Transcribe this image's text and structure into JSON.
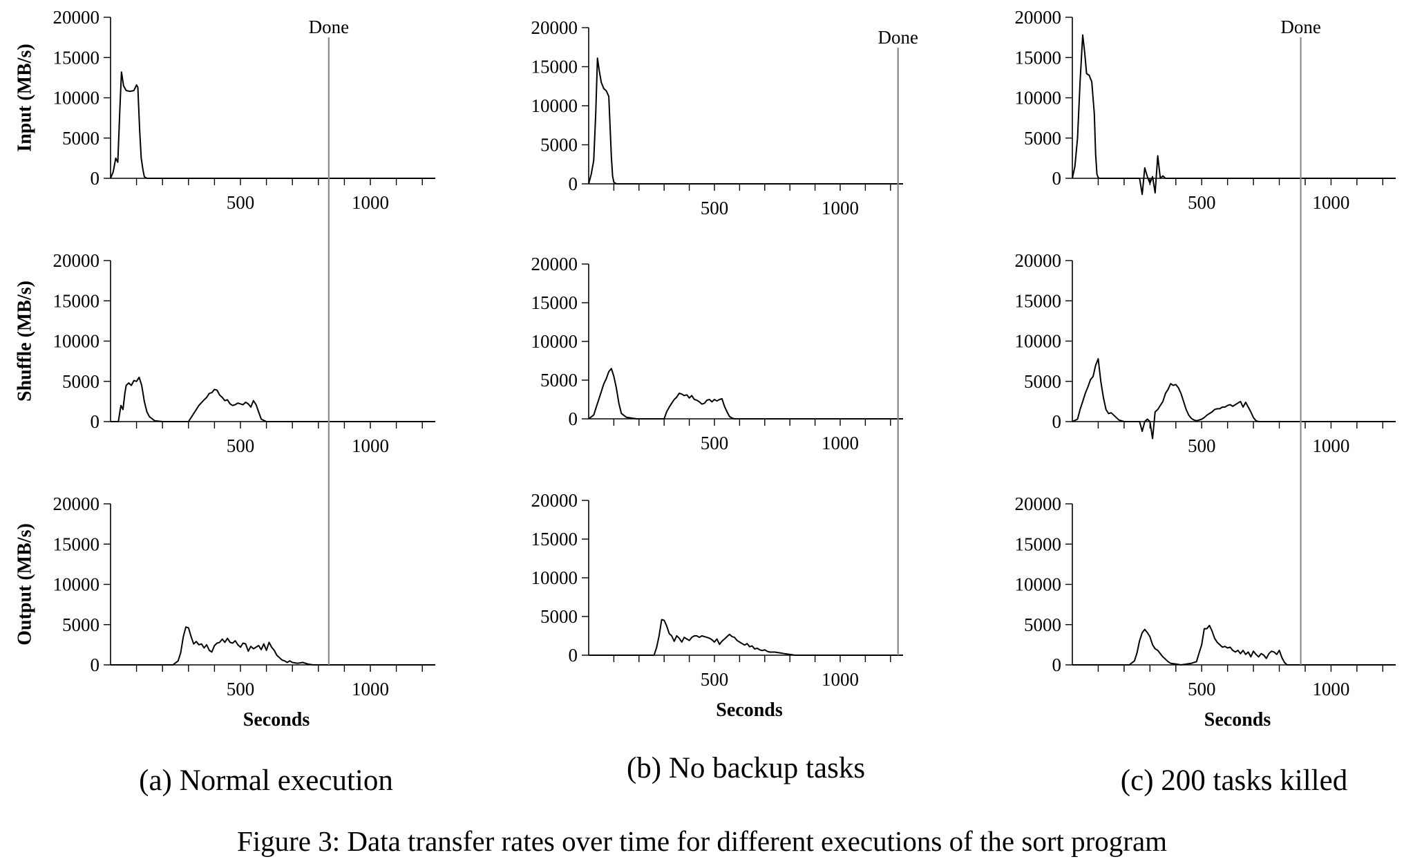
{
  "figure_caption": "Figure 3: Data transfer rates over time for different executions of the sort program",
  "done_label": "Done",
  "chart_data": [
    {
      "caption": "(a) Normal execution",
      "type": "line",
      "xlabel": "Seconds",
      "xlim": [
        0,
        1250
      ],
      "xticks": [
        500,
        1000
      ],
      "done_x": 840,
      "rows": [
        {
          "ylabel": "Input (MB/s)",
          "ylim": [
            0,
            20000
          ],
          "yticks": [
            0,
            5000,
            10000,
            15000,
            20000
          ],
          "x": [
            0,
            10,
            20,
            28,
            35,
            42,
            50,
            60,
            75,
            90,
            100,
            105,
            112,
            118,
            125,
            130,
            140,
            160,
            1250
          ],
          "y": [
            0,
            800,
            2500,
            2000,
            8000,
            13200,
            11500,
            10900,
            10800,
            10900,
            11600,
            11300,
            6000,
            2500,
            1000,
            200,
            0,
            0,
            0
          ]
        },
        {
          "ylabel": "Shuffle (MB/s)",
          "ylim": [
            0,
            20000
          ],
          "yticks": [
            0,
            5000,
            10000,
            15000,
            20000
          ],
          "x": [
            0,
            30,
            40,
            48,
            55,
            60,
            70,
            80,
            90,
            100,
            110,
            120,
            130,
            140,
            150,
            170,
            200,
            300,
            320,
            340,
            360,
            370,
            380,
            390,
            400,
            410,
            420,
            430,
            440,
            450,
            460,
            470,
            480,
            490,
            500,
            510,
            520,
            530,
            540,
            550,
            560,
            570,
            580,
            600,
            1250
          ],
          "y": [
            0,
            0,
            2000,
            1500,
            3500,
            4500,
            4800,
            4500,
            5100,
            5000,
            5500,
            4500,
            2500,
            1200,
            600,
            100,
            0,
            0,
            1000,
            2000,
            2700,
            3000,
            3500,
            3600,
            4000,
            3900,
            3300,
            3000,
            2600,
            2700,
            2200,
            2000,
            2100,
            2300,
            2200,
            2100,
            2400,
            2200,
            1800,
            2600,
            2100,
            1200,
            300,
            0,
            0
          ]
        },
        {
          "ylabel": "Output (MB/s)",
          "ylim": [
            0,
            20000
          ],
          "yticks": [
            0,
            5000,
            10000,
            15000,
            20000
          ],
          "x": [
            0,
            240,
            260,
            270,
            280,
            290,
            300,
            310,
            320,
            330,
            340,
            350,
            360,
            370,
            380,
            390,
            400,
            410,
            420,
            430,
            440,
            450,
            460,
            470,
            480,
            490,
            500,
            510,
            520,
            530,
            540,
            550,
            560,
            570,
            580,
            590,
            600,
            610,
            620,
            630,
            640,
            650,
            660,
            670,
            680,
            690,
            700,
            720,
            740,
            760,
            780,
            1250
          ],
          "y": [
            0,
            0,
            500,
            1500,
            3500,
            4700,
            4600,
            3500,
            2600,
            2900,
            2500,
            2600,
            2100,
            2500,
            1800,
            1600,
            2400,
            2700,
            2800,
            3200,
            2800,
            3300,
            2800,
            2700,
            3000,
            2500,
            2200,
            2700,
            2600,
            1700,
            2300,
            2000,
            2200,
            2400,
            1900,
            2600,
            1800,
            2800,
            2200,
            1800,
            1200,
            900,
            600,
            500,
            300,
            500,
            300,
            200,
            300,
            100,
            0,
            0
          ]
        }
      ]
    },
    {
      "caption": "(b) No backup tasks",
      "type": "line",
      "xlabel": "Seconds",
      "xlim": [
        0,
        1250
      ],
      "xticks": [
        500,
        1000
      ],
      "done_x": 1230,
      "rows": [
        {
          "ylabel": "",
          "ylim": [
            0,
            20000
          ],
          "yticks": [
            0,
            5000,
            10000,
            15000,
            20000
          ],
          "x": [
            0,
            10,
            20,
            28,
            35,
            42,
            50,
            60,
            70,
            80,
            90,
            95,
            100,
            110,
            1250
          ],
          "y": [
            0,
            1200,
            3000,
            9000,
            16100,
            14500,
            13000,
            12200,
            11900,
            11200,
            3500,
            1000,
            200,
            0,
            0
          ]
        },
        {
          "ylabel": "",
          "ylim": [
            0,
            20000
          ],
          "yticks": [
            0,
            5000,
            10000,
            15000,
            20000
          ],
          "x": [
            0,
            20,
            30,
            40,
            50,
            60,
            70,
            80,
            90,
            100,
            110,
            120,
            130,
            150,
            170,
            190,
            200,
            300,
            310,
            320,
            330,
            340,
            350,
            360,
            370,
            380,
            390,
            400,
            410,
            420,
            430,
            440,
            450,
            460,
            470,
            480,
            490,
            500,
            510,
            520,
            530,
            540,
            550,
            560,
            570,
            580,
            1250
          ],
          "y": [
            0,
            500,
            1500,
            2500,
            3500,
            4500,
            5200,
            6100,
            6500,
            5500,
            4000,
            2000,
            700,
            200,
            100,
            0,
            0,
            0,
            900,
            1500,
            2000,
            2500,
            2800,
            3300,
            3200,
            3000,
            3100,
            2700,
            3000,
            2500,
            2400,
            2200,
            1900,
            2000,
            2400,
            2500,
            2200,
            2500,
            2300,
            2500,
            2600,
            1600,
            900,
            300,
            100,
            0,
            0
          ]
        },
        {
          "ylabel": "",
          "ylim": [
            0,
            20000
          ],
          "yticks": [
            0,
            5000,
            10000,
            15000,
            20000
          ],
          "x": [
            0,
            260,
            270,
            280,
            290,
            300,
            310,
            320,
            330,
            340,
            350,
            360,
            370,
            380,
            390,
            400,
            410,
            420,
            430,
            440,
            450,
            460,
            470,
            480,
            490,
            500,
            510,
            520,
            530,
            540,
            550,
            560,
            570,
            580,
            590,
            600,
            610,
            620,
            630,
            640,
            650,
            660,
            670,
            680,
            690,
            700,
            710,
            720,
            740,
            760,
            780,
            800,
            820,
            1250
          ],
          "y": [
            0,
            0,
            1000,
            2500,
            4600,
            4500,
            3800,
            2800,
            2500,
            1800,
            2500,
            2200,
            1700,
            2300,
            2100,
            1900,
            2300,
            2500,
            2500,
            2300,
            2500,
            2400,
            2300,
            2200,
            2000,
            1700,
            2100,
            1400,
            1800,
            2100,
            2400,
            2700,
            2400,
            2300,
            1900,
            1700,
            1500,
            1300,
            1500,
            1100,
            1200,
            800,
            900,
            700,
            600,
            700,
            500,
            400,
            400,
            300,
            200,
            100,
            0,
            0
          ]
        }
      ]
    },
    {
      "caption": "(c) 200 tasks killed",
      "type": "line",
      "xlabel": "Seconds",
      "xlim": [
        0,
        1250
      ],
      "xticks": [
        500,
        1000
      ],
      "done_x": 883,
      "rows": [
        {
          "ylabel": "",
          "ylim": [
            0,
            20000
          ],
          "yticks": [
            0,
            5000,
            10000,
            15000,
            20000
          ],
          "x": [
            0,
            10,
            20,
            30,
            40,
            48,
            55,
            65,
            75,
            85,
            90,
            95,
            100,
            105,
            115,
            200,
            260,
            270,
            280,
            290,
            300,
            310,
            320,
            330,
            340,
            350,
            360,
            400,
            1250
          ],
          "y": [
            0,
            1500,
            5000,
            12000,
            17800,
            15500,
            13000,
            12800,
            12000,
            8000,
            3000,
            500,
            100,
            0,
            0,
            0,
            0,
            -2000,
            1300,
            200,
            -600,
            200,
            -1800,
            2800,
            0,
            300,
            0,
            0,
            0
          ]
        },
        {
          "ylabel": "",
          "ylim": [
            0,
            20000
          ],
          "yticks": [
            0,
            5000,
            10000,
            15000,
            20000
          ],
          "x": [
            0,
            20,
            30,
            40,
            50,
            60,
            70,
            80,
            90,
            100,
            110,
            120,
            130,
            140,
            150,
            160,
            170,
            180,
            200,
            220,
            240,
            260,
            270,
            280,
            290,
            300,
            310,
            320,
            330,
            340,
            350,
            360,
            370,
            380,
            390,
            400,
            410,
            420,
            430,
            440,
            450,
            460,
            470,
            480,
            490,
            500,
            510,
            520,
            530,
            540,
            550,
            560,
            570,
            580,
            590,
            600,
            610,
            620,
            630,
            640,
            650,
            660,
            670,
            680,
            690,
            700,
            710,
            720,
            1250
          ],
          "y": [
            0,
            300,
            1500,
            2500,
            3500,
            4300,
            5200,
            5600,
            7000,
            7800,
            5000,
            3000,
            1500,
            1000,
            1100,
            800,
            500,
            200,
            0,
            0,
            0,
            0,
            -1200,
            0,
            300,
            0,
            -2100,
            1200,
            1500,
            2000,
            2500,
            3500,
            4000,
            4700,
            4500,
            4600,
            4200,
            3500,
            2500,
            1500,
            800,
            400,
            200,
            100,
            200,
            300,
            500,
            800,
            1000,
            1200,
            1500,
            1600,
            1600,
            1800,
            1800,
            2000,
            2100,
            1900,
            2100,
            2300,
            2500,
            1800,
            2400,
            1800,
            1200,
            500,
            100,
            0,
            0
          ]
        },
        {
          "ylabel": "",
          "ylim": [
            0,
            20000
          ],
          "yticks": [
            0,
            5000,
            10000,
            15000,
            20000
          ],
          "x": [
            0,
            220,
            240,
            250,
            260,
            270,
            280,
            290,
            300,
            310,
            320,
            330,
            340,
            350,
            360,
            370,
            380,
            400,
            420,
            440,
            460,
            480,
            490,
            500,
            510,
            520,
            530,
            540,
            550,
            560,
            570,
            580,
            590,
            600,
            610,
            620,
            630,
            640,
            650,
            660,
            670,
            680,
            690,
            700,
            710,
            720,
            730,
            740,
            750,
            760,
            770,
            780,
            790,
            800,
            810,
            820,
            830,
            1250
          ],
          "y": [
            0,
            0,
            500,
            1500,
            3000,
            4000,
            4400,
            4000,
            3500,
            2500,
            2000,
            1800,
            1400,
            1000,
            700,
            400,
            200,
            100,
            0,
            100,
            200,
            400,
            1500,
            2500,
            4500,
            4500,
            4900,
            4200,
            3300,
            2800,
            2500,
            2200,
            2300,
            2100,
            2200,
            1800,
            1600,
            1800,
            1400,
            1800,
            1300,
            1600,
            1000,
            1700,
            1300,
            1000,
            1400,
            1200,
            800,
            1400,
            1700,
            1600,
            1300,
            1800,
            900,
            300,
            0,
            0
          ]
        }
      ]
    }
  ]
}
